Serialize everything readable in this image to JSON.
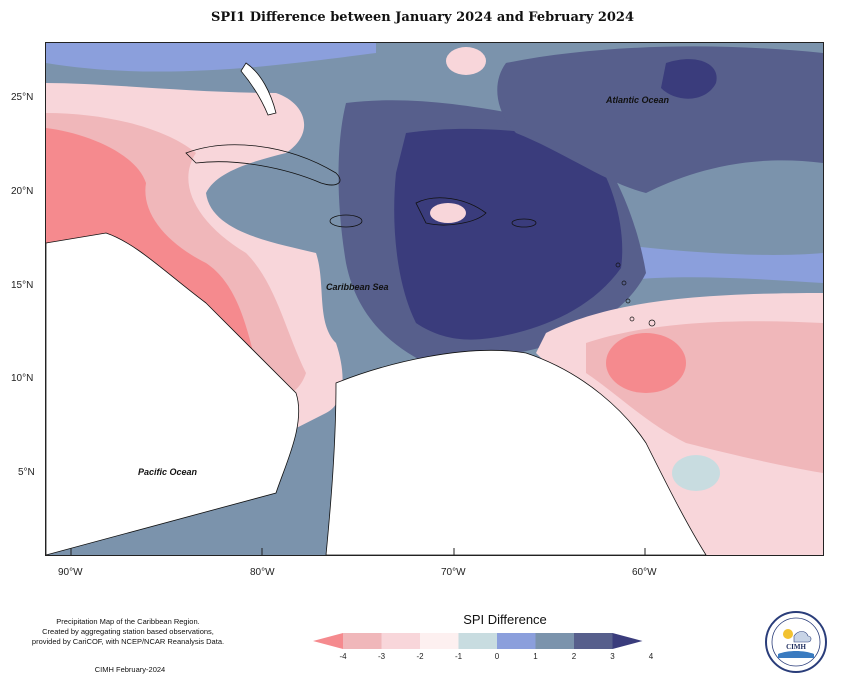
{
  "title": "SPI1 Difference between January 2024 and February 2024",
  "map": {
    "lon_ticks": [
      "90°W",
      "80°W",
      "70°W",
      "60°W"
    ],
    "lat_ticks": [
      "25°N",
      "20°N",
      "15°N",
      "10°N",
      "5°N"
    ],
    "labels": {
      "atlantic": "Atlantic Ocean",
      "caribbean": "Caribbean Sea",
      "pacific": "Pacific Ocean"
    }
  },
  "legend": {
    "title": "SPI Difference",
    "ticks": [
      "-4",
      "-3",
      "-2",
      "-1",
      "0",
      "1",
      "2",
      "3",
      "4"
    ],
    "colors": [
      "#f58a8e",
      "#f0b7ba",
      "#f8d6da",
      "#fdf0f0",
      "#c8dce0",
      "#8b9fdc",
      "#7b93ac",
      "#575f8c",
      "#3a3c7c"
    ]
  },
  "credits": {
    "line1": "Precipitation Map of the Caribbean Region.",
    "line2": "Created by aggregating station based observations,",
    "line3": "provided by CariCOF, with NCEP/NCAR Reanalysis Data.",
    "footer": "CIMH February-2024"
  },
  "logo": {
    "text": "CIMH"
  }
}
